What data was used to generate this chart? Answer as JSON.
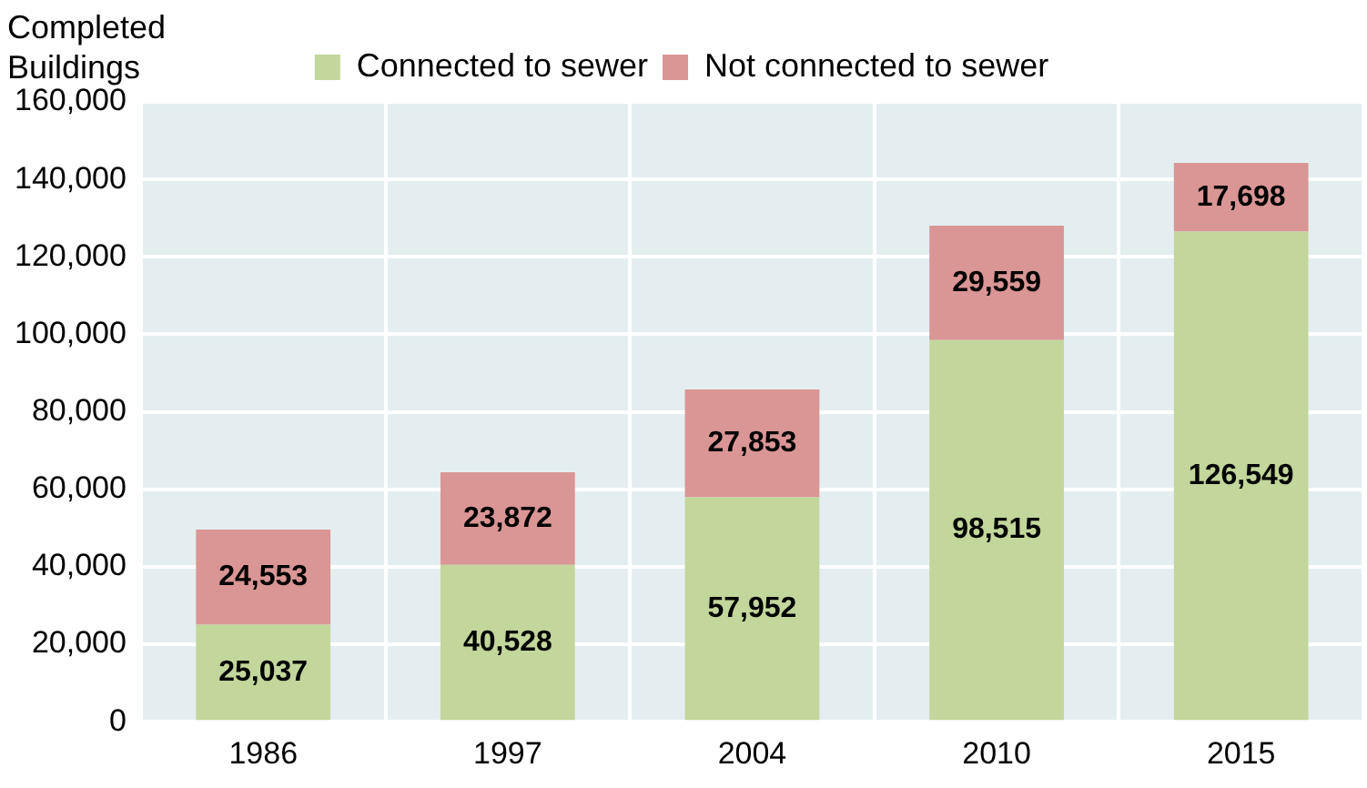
{
  "chart_data": {
    "type": "bar",
    "ylabel": "Completed Buildings",
    "categories": [
      "1986",
      "1997",
      "2004",
      "2010",
      "2015"
    ],
    "series": [
      {
        "name": "Connected to sewer",
        "color": "#c3d69b",
        "values": [
          25037,
          40528,
          57952,
          98515,
          126549
        ],
        "value_labels": [
          "25,037",
          "40,528",
          "57,952",
          "98,515",
          "126,549"
        ]
      },
      {
        "name": "Not connected to sewer",
        "color": "#d99694",
        "values": [
          24553,
          23872,
          27853,
          29559,
          17698
        ],
        "value_labels": [
          "24,553",
          "23,872",
          "27,853",
          "29,559",
          "17,698"
        ]
      }
    ],
    "stacked": true,
    "ylim": [
      0,
      160000
    ],
    "yticks": [
      0,
      {
        "value": 20000,
        "label": "20,000"
      },
      {
        "value": 40000,
        "label": "40,000"
      },
      {
        "value": 60000,
        "label": "60,000"
      },
      {
        "value": 80000,
        "label": "80,000"
      },
      {
        "value": 100000,
        "label": "100,000"
      },
      {
        "value": 120000,
        "label": "120,000"
      },
      {
        "value": 140000,
        "label": "140,000"
      },
      {
        "value": 160000,
        "label": "160,000"
      }
    ],
    "grid": true,
    "legend": "top"
  }
}
